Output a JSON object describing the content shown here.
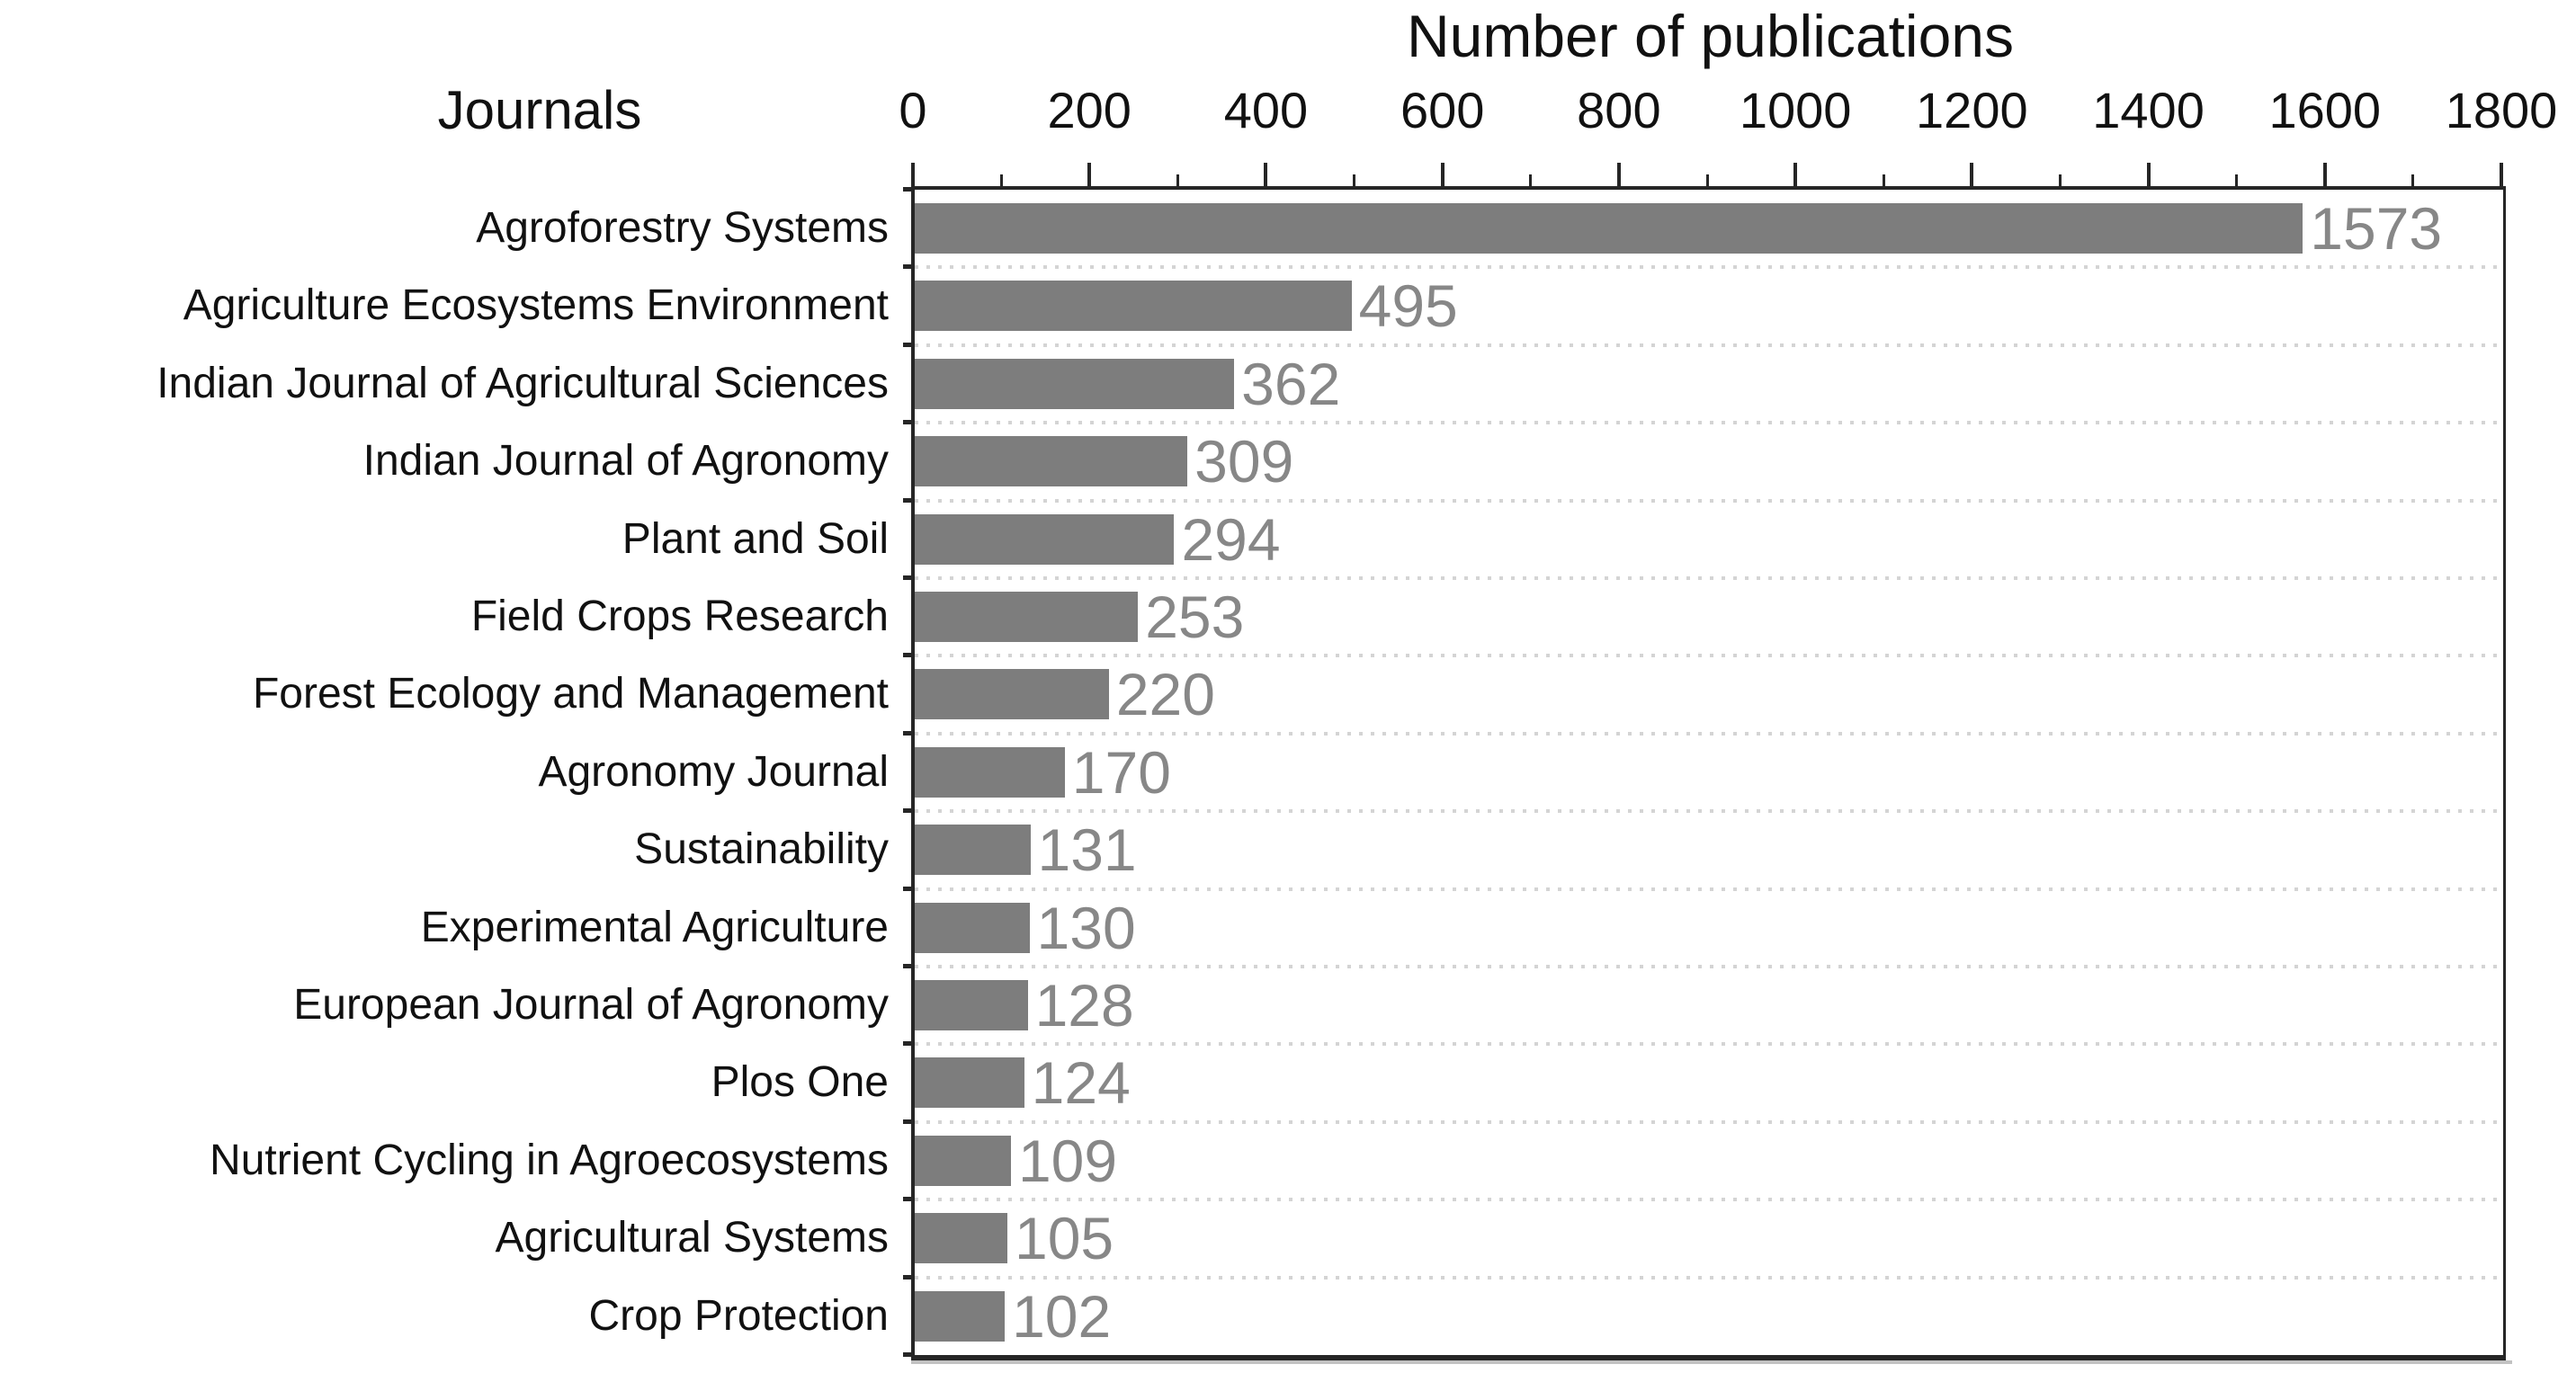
{
  "figure": {
    "title": "Number of publications",
    "category_axis_header": "Journals"
  },
  "chart_data": {
    "type": "bar",
    "orientation": "horizontal",
    "title": "Number of publications",
    "xlabel": "Number of publications",
    "ylabel": "Journals",
    "categories": [
      "Agroforestry Systems",
      "Agriculture Ecosystems Environment",
      "Indian Journal of Agricultural Sciences",
      "Indian Journal of Agronomy",
      "Plant and Soil",
      "Field Crops Research",
      "Forest Ecology and Management",
      "Agronomy Journal",
      "Sustainability",
      "Experimental Agriculture",
      "European Journal of Agronomy",
      "Plos One",
      "Nutrient Cycling in Agroecosystems",
      "Agricultural Systems",
      "Crop Protection"
    ],
    "values": [
      1573,
      495,
      362,
      309,
      294,
      253,
      220,
      170,
      131,
      130,
      128,
      124,
      109,
      105,
      102
    ],
    "value_labels_shown": true,
    "xlim": [
      0,
      1800
    ],
    "x_major_ticks": [
      0,
      200,
      400,
      600,
      800,
      1000,
      1200,
      1400,
      1600,
      1800
    ],
    "x_minor_tick_step": 100,
    "grid": "dotted horizontal separators between categories",
    "legend": "none",
    "colors": {
      "bar_fill": "#7d7d7d",
      "value_label": "#878787",
      "axis_and_text": "#111111",
      "grid_dots": "#d4d4d4",
      "background": "#ffffff"
    }
  }
}
